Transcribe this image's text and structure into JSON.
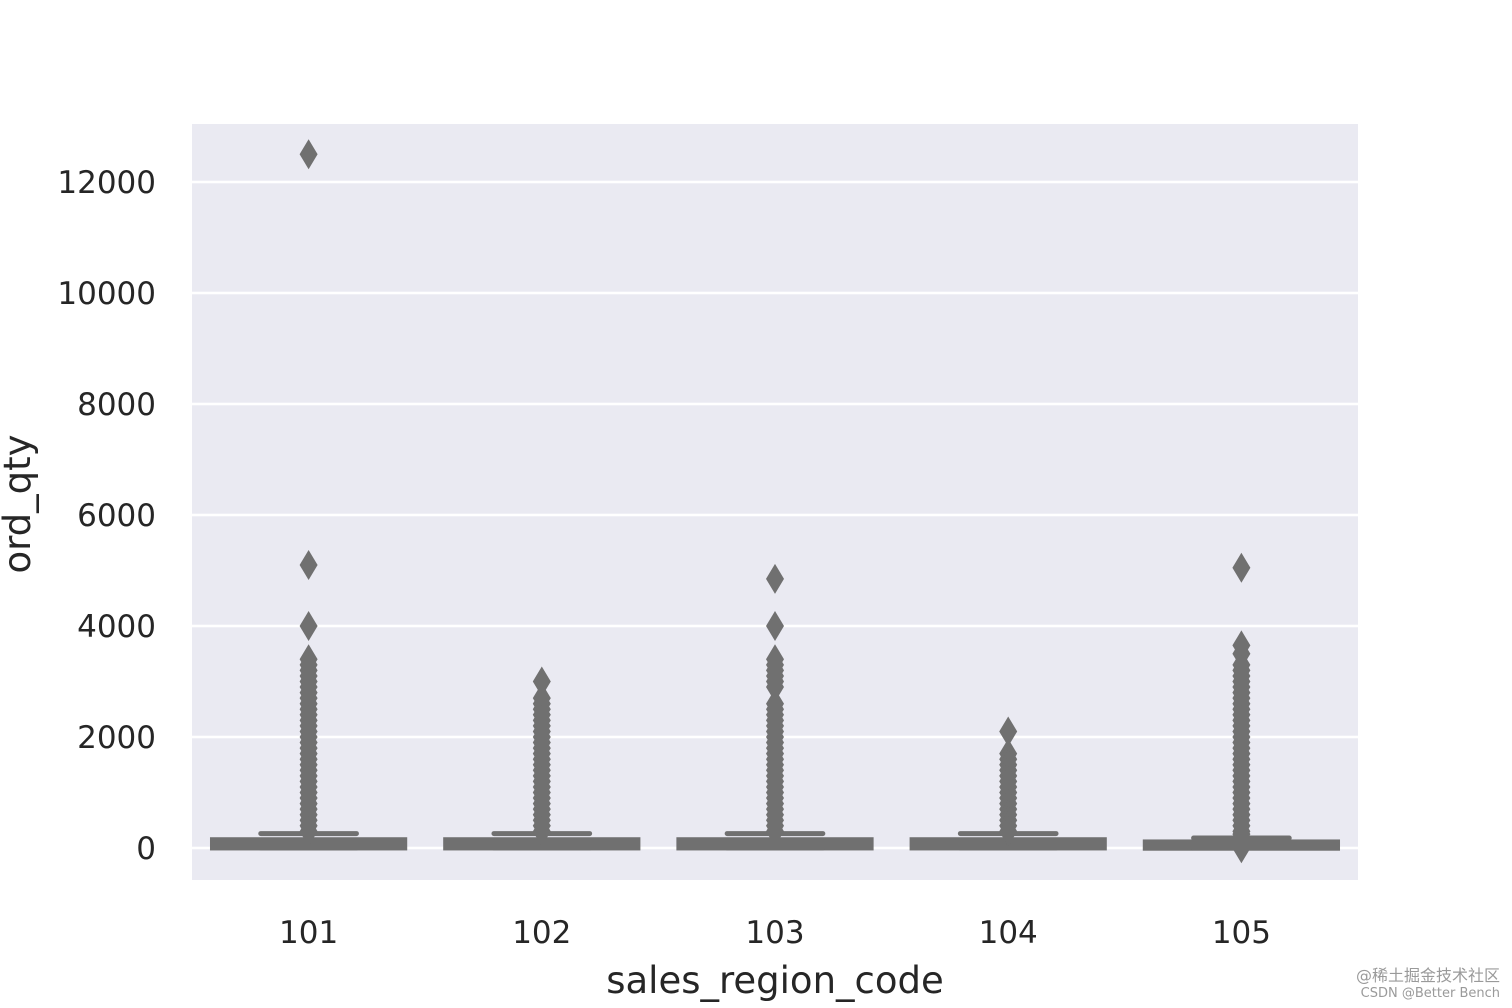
{
  "chart_data": {
    "type": "box",
    "title": "",
    "xlabel": "sales_region_code",
    "ylabel": "ord_qty",
    "categories": [
      "101",
      "102",
      "103",
      "104",
      "105"
    ],
    "ylim": [
      -600,
      13100
    ],
    "yticks": [
      0,
      2000,
      4000,
      6000,
      8000,
      10000,
      12000
    ],
    "ytick_labels": [
      "0",
      "2000",
      "4000",
      "6000",
      "8000",
      "10000",
      "12000"
    ],
    "grid": true,
    "colors": {
      "background": "#eaeaf2",
      "grid": "#ffffff",
      "box": "#707070",
      "text": "#262626"
    },
    "boxes": [
      {
        "category": "101",
        "q1": 10,
        "median": 30,
        "q3": 140,
        "whisker_low": 0,
        "whisker_high": 260,
        "outliers": [
          12500,
          5100,
          4000,
          3400,
          3300,
          3200,
          3100,
          3000,
          2900,
          2800,
          2700,
          2600,
          2500,
          2400,
          2300,
          2200,
          2100,
          2000,
          1900,
          1800,
          1700,
          1600,
          1500,
          1400,
          1300,
          1200,
          1100,
          1000,
          900,
          800,
          700,
          600,
          500,
          400,
          300
        ]
      },
      {
        "category": "102",
        "q1": 10,
        "median": 30,
        "q3": 140,
        "whisker_low": 0,
        "whisker_high": 260,
        "outliers": [
          3000,
          2700,
          2600,
          2500,
          2400,
          2300,
          2200,
          2100,
          2000,
          1900,
          1800,
          1700,
          1600,
          1500,
          1400,
          1300,
          1200,
          1100,
          1000,
          900,
          800,
          700,
          600,
          500,
          400,
          300
        ]
      },
      {
        "category": "103",
        "q1": 10,
        "median": 30,
        "q3": 140,
        "whisker_low": 0,
        "whisker_high": 260,
        "outliers": [
          4850,
          4000,
          3400,
          3300,
          3200,
          3100,
          3000,
          2900,
          2600,
          2500,
          2400,
          2300,
          2200,
          2100,
          2000,
          1900,
          1800,
          1700,
          1600,
          1500,
          1400,
          1300,
          1200,
          1100,
          1000,
          900,
          800,
          700,
          600,
          500,
          400,
          300
        ]
      },
      {
        "category": "104",
        "q1": 10,
        "median": 30,
        "q3": 140,
        "whisker_low": 0,
        "whisker_high": 260,
        "outliers": [
          2100,
          1700,
          1600,
          1500,
          1400,
          1300,
          1200,
          1100,
          1000,
          900,
          800,
          700,
          600,
          500,
          400,
          300
        ]
      },
      {
        "category": "105",
        "q1": 5,
        "median": 20,
        "q3": 100,
        "whisker_low": 0,
        "whisker_high": 180,
        "outliers": [
          5050,
          3650,
          3500,
          3300,
          3200,
          3100,
          3000,
          2900,
          2800,
          2700,
          2600,
          2500,
          2400,
          2300,
          2200,
          2100,
          2000,
          1900,
          1800,
          1700,
          1600,
          1500,
          1400,
          1300,
          1200,
          1100,
          1000,
          900,
          800,
          700,
          600,
          500,
          400,
          300,
          250,
          200,
          -5
        ]
      }
    ]
  },
  "watermark": {
    "line1": "@稀土掘金技术社区",
    "line2": "CSDN @Better Bench"
  }
}
